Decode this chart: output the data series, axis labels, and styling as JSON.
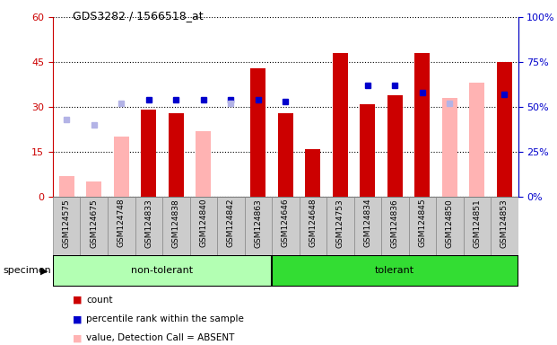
{
  "title": "GDS3282 / 1566518_at",
  "specimens": [
    "GSM124575",
    "GSM124675",
    "GSM124748",
    "GSM124833",
    "GSM124838",
    "GSM124840",
    "GSM124842",
    "GSM124863",
    "GSM124646",
    "GSM124648",
    "GSM124753",
    "GSM124834",
    "GSM124836",
    "GSM124845",
    "GSM124850",
    "GSM124851",
    "GSM124853"
  ],
  "groups": [
    {
      "label": "non-tolerant",
      "start": 0,
      "end": 7,
      "color": "#b3ffb3"
    },
    {
      "label": "tolerant",
      "start": 8,
      "end": 16,
      "color": "#33cc33"
    }
  ],
  "count_values": [
    null,
    null,
    null,
    29,
    28,
    null,
    null,
    43,
    28,
    16,
    48,
    31,
    34,
    48,
    null,
    null,
    45
  ],
  "count_absent": [
    7,
    5,
    20,
    null,
    null,
    22,
    null,
    null,
    null,
    null,
    null,
    null,
    null,
    null,
    33,
    38,
    null
  ],
  "rank_values": [
    null,
    null,
    null,
    54,
    54,
    54,
    54,
    54,
    53,
    null,
    null,
    62,
    62,
    58,
    null,
    null,
    57
  ],
  "rank_absent": [
    43,
    40,
    52,
    null,
    null,
    null,
    52,
    null,
    null,
    null,
    null,
    null,
    null,
    null,
    52,
    null,
    null
  ],
  "ylim_left": [
    0,
    60
  ],
  "ylim_right": [
    0,
    100
  ],
  "yticks_left": [
    0,
    15,
    30,
    45,
    60
  ],
  "yticks_right": [
    0,
    25,
    50,
    75,
    100
  ],
  "left_color": "#cc0000",
  "right_color": "#0000cc",
  "bar_width": 0.55
}
